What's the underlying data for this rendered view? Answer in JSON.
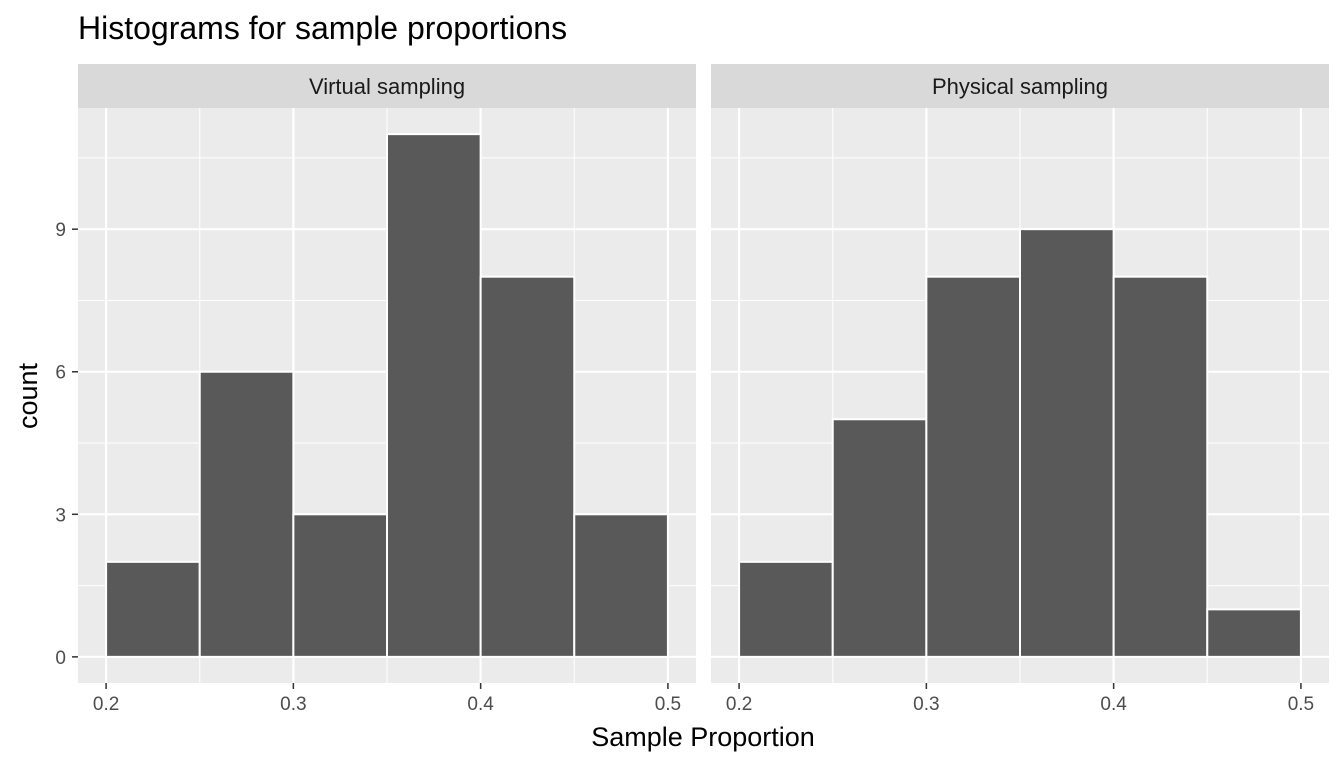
{
  "chart_data": {
    "type": "bar",
    "title": "Histograms for sample proportions",
    "xlabel": "Sample Proportion",
    "ylabel": "count",
    "xlim": [
      0.185,
      0.515
    ],
    "ylim": [
      -0.55,
      11.55
    ],
    "x_ticks": [
      0.2,
      0.3,
      0.4,
      0.5
    ],
    "x_tick_labels": [
      "0.2",
      "0.3",
      "0.4",
      "0.5"
    ],
    "y_ticks": [
      0,
      3,
      6,
      9
    ],
    "y_tick_labels": [
      "0",
      "3",
      "6",
      "9"
    ],
    "grid": true,
    "bins": [
      [
        0.2,
        0.25
      ],
      [
        0.25,
        0.3
      ],
      [
        0.3,
        0.35
      ],
      [
        0.35,
        0.4
      ],
      [
        0.4,
        0.45
      ],
      [
        0.45,
        0.5
      ]
    ],
    "series": [
      {
        "name": "Virtual sampling",
        "values": [
          2,
          6,
          3,
          11,
          8,
          3
        ]
      },
      {
        "name": "Physical sampling",
        "values": [
          2,
          5,
          8,
          9,
          8,
          1
        ]
      }
    ],
    "colors": {
      "bar_fill": "#595959",
      "bar_outline": "#ffffff",
      "panel_background": "#ebebeb",
      "grid": "#ffffff",
      "strip_background": "#d9d9d9"
    }
  }
}
